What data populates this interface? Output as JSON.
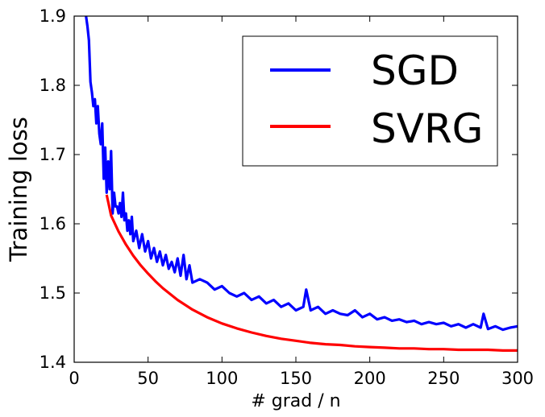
{
  "chart_data": {
    "type": "line",
    "xlabel": "# grad / n",
    "ylabel": "Training loss",
    "xlim": [
      0,
      300
    ],
    "ylim": [
      1.4,
      1.9
    ],
    "xticks": [
      "0",
      "50",
      "100",
      "150",
      "200",
      "250",
      "300"
    ],
    "yticks": [
      "1.4",
      "1.5",
      "1.6",
      "1.7",
      "1.8",
      "1.9"
    ],
    "grid": false,
    "legend_position": "top-right",
    "series": [
      {
        "name": "SGD",
        "color": "#0000ff",
        "x": [
          8,
          9,
          10,
          11,
          12,
          13,
          14,
          15,
          16,
          17,
          18,
          19,
          20,
          21,
          22,
          23,
          24,
          25,
          26,
          27,
          28,
          29,
          30,
          31,
          32,
          33,
          34,
          35,
          36,
          37,
          38,
          39,
          40,
          42,
          44,
          46,
          48,
          50,
          52,
          54,
          56,
          58,
          60,
          62,
          64,
          66,
          68,
          70,
          72,
          74,
          76,
          78,
          80,
          85,
          90,
          95,
          100,
          105,
          110,
          115,
          120,
          125,
          130,
          135,
          140,
          145,
          150,
          155,
          157,
          160,
          165,
          170,
          175,
          180,
          185,
          190,
          195,
          200,
          205,
          210,
          215,
          220,
          225,
          230,
          235,
          240,
          245,
          250,
          255,
          260,
          265,
          270,
          275,
          277,
          280,
          285,
          290,
          295,
          300
        ],
        "values": [
          1.9,
          1.885,
          1.865,
          1.805,
          1.79,
          1.77,
          1.78,
          1.745,
          1.77,
          1.73,
          1.715,
          1.745,
          1.665,
          1.71,
          1.645,
          1.69,
          1.65,
          1.705,
          1.615,
          1.645,
          1.625,
          1.625,
          1.615,
          1.63,
          1.61,
          1.645,
          1.605,
          1.615,
          1.59,
          1.605,
          1.585,
          1.61,
          1.575,
          1.59,
          1.565,
          1.585,
          1.56,
          1.575,
          1.55,
          1.565,
          1.545,
          1.56,
          1.54,
          1.555,
          1.535,
          1.545,
          1.53,
          1.55,
          1.525,
          1.555,
          1.52,
          1.54,
          1.515,
          1.52,
          1.515,
          1.505,
          1.51,
          1.5,
          1.495,
          1.5,
          1.49,
          1.495,
          1.485,
          1.49,
          1.48,
          1.485,
          1.475,
          1.48,
          1.505,
          1.475,
          1.48,
          1.47,
          1.475,
          1.47,
          1.468,
          1.475,
          1.465,
          1.47,
          1.462,
          1.465,
          1.46,
          1.462,
          1.458,
          1.46,
          1.455,
          1.458,
          1.455,
          1.457,
          1.452,
          1.455,
          1.45,
          1.455,
          1.45,
          1.47,
          1.448,
          1.452,
          1.447,
          1.45,
          1.452
        ]
      },
      {
        "name": "SVRG",
        "color": "#ff0000",
        "x": [
          22,
          25,
          30,
          35,
          40,
          45,
          50,
          55,
          60,
          70,
          80,
          90,
          100,
          110,
          120,
          130,
          140,
          150,
          160,
          170,
          180,
          190,
          200,
          210,
          220,
          230,
          240,
          250,
          260,
          270,
          280,
          290,
          300
        ],
        "values": [
          1.642,
          1.612,
          1.589,
          1.57,
          1.554,
          1.54,
          1.528,
          1.517,
          1.507,
          1.49,
          1.476,
          1.465,
          1.456,
          1.449,
          1.443,
          1.438,
          1.434,
          1.431,
          1.428,
          1.426,
          1.425,
          1.423,
          1.422,
          1.421,
          1.42,
          1.42,
          1.419,
          1.419,
          1.418,
          1.418,
          1.418,
          1.417,
          1.417
        ]
      }
    ]
  }
}
